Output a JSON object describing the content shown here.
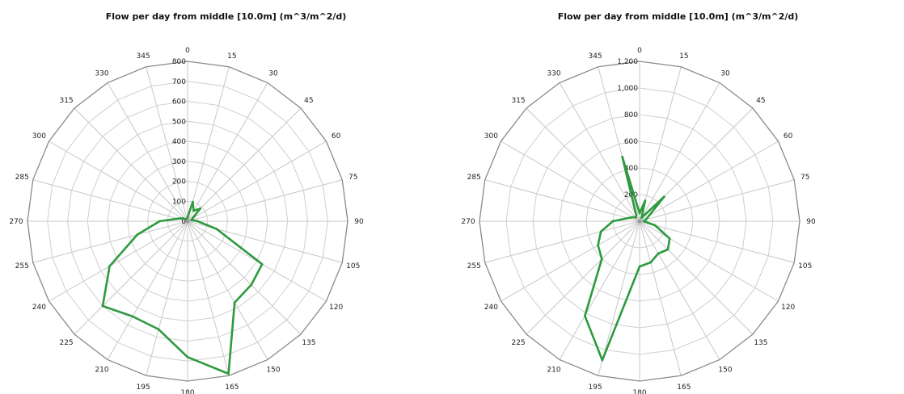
{
  "chart_data": [
    {
      "type": "polar-line",
      "title": "Flow per day from middle [10.0m] (m^3/m^2/d)",
      "angle_labels": [
        "0",
        "15",
        "30",
        "45",
        "60",
        "75",
        "90",
        "105",
        "120",
        "135",
        "150",
        "165",
        "180",
        "195",
        "210",
        "225",
        "240",
        "255",
        "270",
        "285",
        "300",
        "315",
        "330",
        "345"
      ],
      "radial_range": [
        0,
        800
      ],
      "radial_ticks": [
        0,
        100,
        200,
        300,
        400,
        500,
        600,
        700,
        800
      ],
      "radial_tick_labels": [
        "0",
        "100",
        "200",
        "300",
        "400",
        "500",
        "600",
        "700",
        "800"
      ],
      "grid": true,
      "series_color": "#2e9a3e",
      "series": [
        {
          "name": "",
          "angles": [
            0,
            15,
            30,
            45,
            60,
            75,
            90,
            105,
            120,
            135,
            150,
            165,
            180,
            195,
            210,
            225,
            240,
            255,
            270,
            285,
            300,
            315,
            330,
            345
          ],
          "values": [
            20,
            100,
            60,
            90,
            30,
            20,
            50,
            150,
            430,
            450,
            470,
            790,
            680,
            560,
            550,
            600,
            450,
            260,
            140,
            50,
            30,
            15,
            10,
            10
          ]
        }
      ]
    },
    {
      "type": "polar-line",
      "title": "Flow per day from middle [10.0m] (m^3/m^2/d)",
      "angle_labels": [
        "0",
        "15",
        "30",
        "45",
        "60",
        "75",
        "90",
        "105",
        "120",
        "135",
        "150",
        "165",
        "180",
        "195",
        "210",
        "225",
        "240",
        "255",
        "270",
        "285",
        "300",
        "315",
        "330",
        "345"
      ],
      "radial_range": [
        0,
        1200
      ],
      "radial_ticks": [
        0,
        200,
        400,
        600,
        800,
        1000,
        1200
      ],
      "radial_tick_labels": [
        "",
        "200",
        "400",
        "600",
        "800",
        "1,000",
        "1,200"
      ],
      "grid": true,
      "series_color": "#2e9a3e",
      "series": [
        {
          "name": "",
          "angles": [
            0,
            15,
            30,
            45,
            60,
            75,
            90,
            105,
            120,
            135,
            150,
            165,
            180,
            195,
            210,
            225,
            240,
            255,
            270,
            285,
            300,
            315,
            330,
            345
          ],
          "values": [
            60,
            160,
            30,
            260,
            80,
            50,
            30,
            120,
            260,
            300,
            280,
            320,
            340,
            1080,
            820,
            400,
            360,
            300,
            200,
            90,
            60,
            40,
            50,
            500
          ]
        }
      ]
    }
  ]
}
